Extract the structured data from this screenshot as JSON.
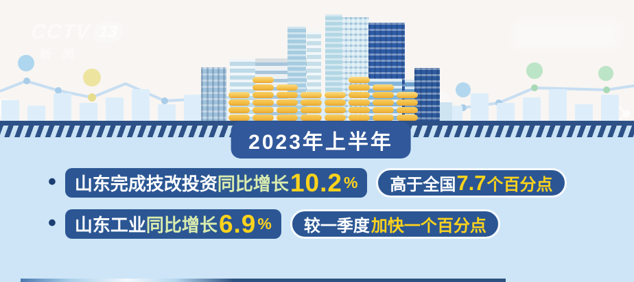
{
  "channel_logo": {
    "name": "CCTV",
    "number": "13",
    "subtitle": "新闻"
  },
  "banner": {
    "title": "2023年上半年"
  },
  "stats": [
    {
      "bullet": "•",
      "subject": "山东完成技改投资",
      "measure": "同比增长",
      "value": "10.2",
      "unit": "%",
      "note_prefix": "高于全国",
      "note_value": "7.7",
      "note_suffix": "个百分点"
    },
    {
      "bullet": "•",
      "subject": "山东工业",
      "measure": "同比增长",
      "value": "6.9",
      "unit": "%",
      "note_prefix": "较一季度",
      "note_value": "",
      "note_suffix": "加快一个百分点"
    }
  ],
  "colors": {
    "accent_yellow": "#ffd31c",
    "pale_lime": "#d9ecae",
    "panel_blue": "#2b5693",
    "banner_blue": "#31589a",
    "band_navy": "#2d5187",
    "background_top": "#f8f5f2",
    "background_bottom": "#cde5f7",
    "coin_gold": "#f3bd45"
  }
}
